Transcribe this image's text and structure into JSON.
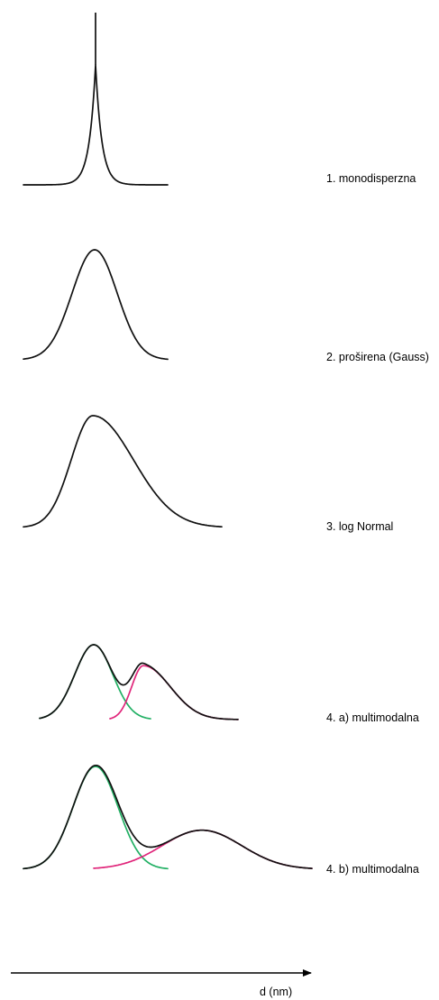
{
  "distributions": [
    {
      "label": "1. monodisperzna"
    },
    {
      "label": "2. proširena (Gauss)"
    },
    {
      "label": "3. log Normal"
    },
    {
      "label": "4. a) multimodalna"
    },
    {
      "label": "4. b) multimodalna"
    }
  ],
  "axis": {
    "label": "d (nm)"
  },
  "colors": {
    "envelope": "#111111",
    "component_1": "#22b064",
    "component_2": "#e0257a",
    "axis": "#000000"
  }
}
